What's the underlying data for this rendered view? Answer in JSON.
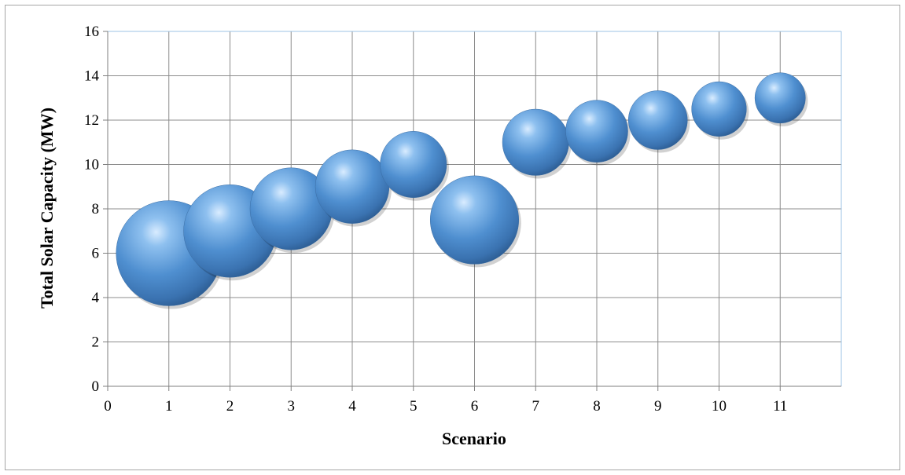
{
  "chart_data": {
    "type": "bubble",
    "title": "",
    "xlabel": "Scenario",
    "ylabel": "Total Solar Capacity (MW)",
    "xlim": [
      0,
      12
    ],
    "ylim": [
      0,
      16
    ],
    "x_ticks": [
      "0",
      "1",
      "2",
      "3",
      "4",
      "5",
      "6",
      "7",
      "8",
      "9",
      "10",
      "11"
    ],
    "y_ticks": [
      "0",
      "2",
      "4",
      "6",
      "8",
      "10",
      "12",
      "14",
      "16"
    ],
    "grid": true,
    "legend": "none",
    "bubble_color": "#4f8fd0",
    "points": [
      {
        "x": 1,
        "y": 6,
        "size": 1.0
      },
      {
        "x": 2,
        "y": 7,
        "size": 0.88
      },
      {
        "x": 3,
        "y": 8,
        "size": 0.78
      },
      {
        "x": 4,
        "y": 9,
        "size": 0.7
      },
      {
        "x": 5,
        "y": 10,
        "size": 0.63
      },
      {
        "x": 6,
        "y": 7.5,
        "size": 0.84
      },
      {
        "x": 7,
        "y": 11,
        "size": 0.63
      },
      {
        "x": 8,
        "y": 11.5,
        "size": 0.59
      },
      {
        "x": 9,
        "y": 12,
        "size": 0.56
      },
      {
        "x": 10,
        "y": 12.5,
        "size": 0.52
      },
      {
        "x": 11,
        "y": 13,
        "size": 0.48
      }
    ]
  }
}
